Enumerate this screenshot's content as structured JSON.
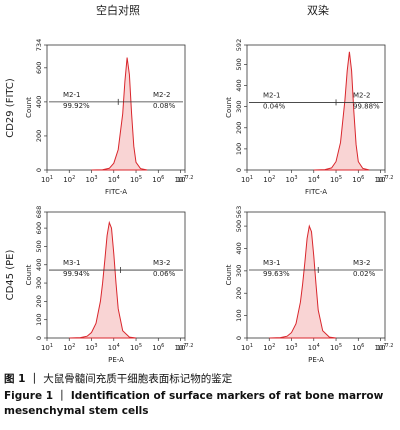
{
  "column_titles": [
    "空白对照",
    "双染"
  ],
  "row_labels": [
    "CD29 (FITC)",
    "CD45 (PE)"
  ],
  "chart_data": [
    {
      "type": "line",
      "x_label": "FITC-A",
      "y_label": "Count",
      "log_x": true,
      "color": "#d9262c",
      "xlim": [
        10,
        15848932
      ],
      "xticks": [
        {
          "value": 10,
          "label": "10",
          "exponent": "1"
        },
        {
          "value": 100,
          "label": "10",
          "exponent": "2"
        },
        {
          "value": 1000,
          "label": "10",
          "exponent": "3"
        },
        {
          "value": 10000,
          "label": "10",
          "exponent": "4"
        },
        {
          "value": 100000,
          "label": "10",
          "exponent": "5"
        },
        {
          "value": 1000000,
          "label": "10",
          "exponent": "6"
        },
        {
          "value": 10000000,
          "label": "10",
          "exponent": "7"
        },
        {
          "value": 15848932,
          "label": "10",
          "exponent": "7.2"
        }
      ],
      "ylim": [
        0,
        734
      ],
      "yticks": [
        0,
        200,
        400,
        600,
        734
      ],
      "x": [
        1000,
        3162,
        6310,
        10000,
        15850,
        25120,
        31620,
        39810,
        50120,
        63100,
        79430,
        100000,
        158500,
        316200
      ],
      "values": [
        0,
        2,
        10,
        40,
        120,
        330,
        520,
        660,
        560,
        330,
        140,
        45,
        8,
        0
      ],
      "gate": {
        "level": 400,
        "divider": 15850,
        "left_name": "M2-1",
        "left_percent": "99.92%",
        "right_name": "M2-2",
        "right_percent": "0.08%"
      }
    },
    {
      "type": "line",
      "x_label": "FITC-A",
      "y_label": "Count",
      "log_x": true,
      "color": "#d9262c",
      "xlim": [
        10,
        15848932
      ],
      "xticks": [
        {
          "value": 10,
          "label": "10",
          "exponent": "1"
        },
        {
          "value": 100,
          "label": "10",
          "exponent": "2"
        },
        {
          "value": 1000,
          "label": "10",
          "exponent": "3"
        },
        {
          "value": 10000,
          "label": "10",
          "exponent": "4"
        },
        {
          "value": 100000,
          "label": "10",
          "exponent": "5"
        },
        {
          "value": 1000000,
          "label": "10",
          "exponent": "6"
        },
        {
          "value": 10000000,
          "label": "10",
          "exponent": "7"
        },
        {
          "value": 15848932,
          "label": "10",
          "exponent": "7.2"
        }
      ],
      "ylim": [
        0,
        592
      ],
      "yticks": [
        0,
        100,
        200,
        300,
        400,
        500,
        592
      ],
      "x": [
        10000,
        31620,
        63100,
        100000,
        158500,
        251200,
        316200,
        398100,
        501200,
        631000,
        794300,
        1000000,
        1585000,
        3162000
      ],
      "values": [
        0,
        2,
        10,
        40,
        130,
        330,
        470,
        560,
        470,
        280,
        120,
        40,
        8,
        0
      ],
      "gate": {
        "level": 320,
        "divider": 100000,
        "left_name": "M2-1",
        "left_percent": "0.04%",
        "right_name": "M2-2",
        "right_percent": "99.88%"
      }
    },
    {
      "type": "line",
      "x_label": "PE-A",
      "y_label": "Count",
      "log_x": true,
      "color": "#d9262c",
      "xlim": [
        10,
        15848932
      ],
      "xticks": [
        {
          "value": 10,
          "label": "10",
          "exponent": "1"
        },
        {
          "value": 100,
          "label": "10",
          "exponent": "2"
        },
        {
          "value": 1000,
          "label": "10",
          "exponent": "3"
        },
        {
          "value": 10000,
          "label": "10",
          "exponent": "4"
        },
        {
          "value": 100000,
          "label": "10",
          "exponent": "5"
        },
        {
          "value": 1000000,
          "label": "10",
          "exponent": "6"
        },
        {
          "value": 10000000,
          "label": "10",
          "exponent": "7"
        },
        {
          "value": 15848932,
          "label": "10",
          "exponent": "7.2"
        }
      ],
      "ylim": [
        0,
        688
      ],
      "yticks": [
        0,
        100,
        200,
        300,
        400,
        500,
        600,
        688
      ],
      "x": [
        100,
        316,
        631,
        1000,
        1585,
        2512,
        3162,
        3981,
        5012,
        6310,
        7943,
        10000,
        12590,
        15850,
        25120,
        50120,
        100000
      ],
      "values": [
        0,
        2,
        10,
        30,
        80,
        200,
        300,
        430,
        560,
        630,
        600,
        460,
        300,
        160,
        40,
        5,
        0
      ],
      "gate": {
        "level": 371,
        "divider": 19950,
        "left_name": "M3-1",
        "left_percent": "99.94%",
        "right_name": "M3-2",
        "right_percent": "0.06%"
      }
    },
    {
      "type": "line",
      "x_label": "PE-A",
      "y_label": "Count",
      "log_x": true,
      "color": "#d9262c",
      "xlim": [
        10,
        15848932
      ],
      "xticks": [
        {
          "value": 10,
          "label": "10",
          "exponent": "1"
        },
        {
          "value": 100,
          "label": "10",
          "exponent": "2"
        },
        {
          "value": 1000,
          "label": "10",
          "exponent": "3"
        },
        {
          "value": 10000,
          "label": "10",
          "exponent": "4"
        },
        {
          "value": 100000,
          "label": "10",
          "exponent": "5"
        },
        {
          "value": 1000000,
          "label": "10",
          "exponent": "6"
        },
        {
          "value": 10000000,
          "label": "10",
          "exponent": "7"
        },
        {
          "value": 15848932,
          "label": "10",
          "exponent": "7.2"
        }
      ],
      "ylim": [
        0,
        563
      ],
      "yticks": [
        0,
        100,
        200,
        300,
        400,
        500,
        563
      ],
      "x": [
        100,
        316,
        631,
        1000,
        1585,
        2512,
        3162,
        3981,
        5012,
        6310,
        7943,
        10000,
        12590,
        15850,
        25120,
        50120,
        100000
      ],
      "values": [
        0,
        2,
        8,
        24,
        64,
        160,
        240,
        340,
        445,
        500,
        475,
        365,
        240,
        125,
        32,
        4,
        0
      ],
      "gate": {
        "level": 304,
        "divider": 15850,
        "left_name": "M3-1",
        "left_percent": "99.63%",
        "right_name": "M3-2",
        "right_percent": "0.02%"
      }
    }
  ],
  "caption": {
    "cn_label": "图 1",
    "cn_text": "大鼠骨髓间充质干细胞表面标记物的鉴定",
    "en_label": "Figure 1",
    "en_text": "Identification of surface markers of rat bone marrow mesenchymal stem cells"
  }
}
